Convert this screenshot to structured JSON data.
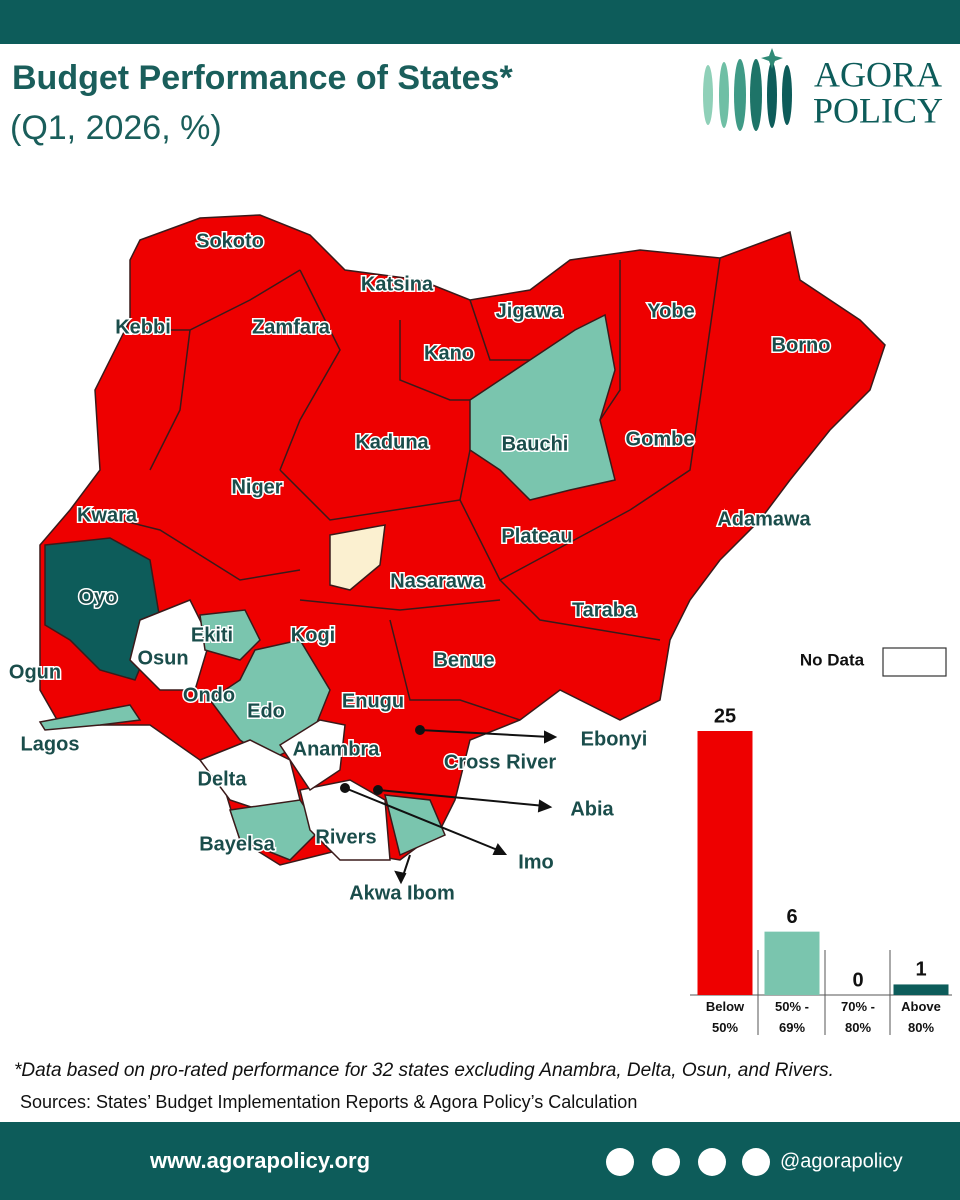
{
  "header": {
    "title": "Budget Performance of States*",
    "subtitle": "(Q1, 2026, %)"
  },
  "logo": {
    "line1": "AGORA",
    "line2": "POLICY"
  },
  "map": {
    "states": [
      "Sokoto",
      "Katsina",
      "Kebbi",
      "Zamfara",
      "Kano",
      "Jigawa",
      "Yobe",
      "Borno",
      "Kaduna",
      "Bauchi",
      "Gombe",
      "Niger",
      "Kwara",
      "Adamawa",
      "Plateau",
      "Oyo",
      "Nasarawa",
      "Taraba",
      "Ekiti",
      "Kogi",
      "Osun",
      "Benue",
      "Ogun",
      "Ondo",
      "Edo",
      "Enugu",
      "Lagos",
      "Anambra",
      "Cross River",
      "Delta",
      "Bayelsa",
      "Rivers"
    ],
    "pointed_states": [
      "Ebonyi",
      "Abia",
      "Imo",
      "Akwa Ibom"
    ],
    "no_data_label": "No Data"
  },
  "chart_data": {
    "type": "bar",
    "categories": [
      "Below 50%",
      "50% - 69%",
      "70% - 80%",
      "Above 80%"
    ],
    "values": [
      25,
      6,
      0,
      1
    ],
    "colors": [
      "#ee0000",
      "#7ac5ae",
      "#7ac5ae",
      "#0d5c5a"
    ]
  },
  "footnote": "*Data based on pro-rated performance for 32 states excluding Anambra, Delta, Osun,  and Rivers.",
  "sources": "Sources: States’ Budget Implementation Reports & Agora Policy’s Calculation",
  "footer": {
    "website": "www.agorapolicy.org",
    "handle": "@agorapolicy"
  }
}
